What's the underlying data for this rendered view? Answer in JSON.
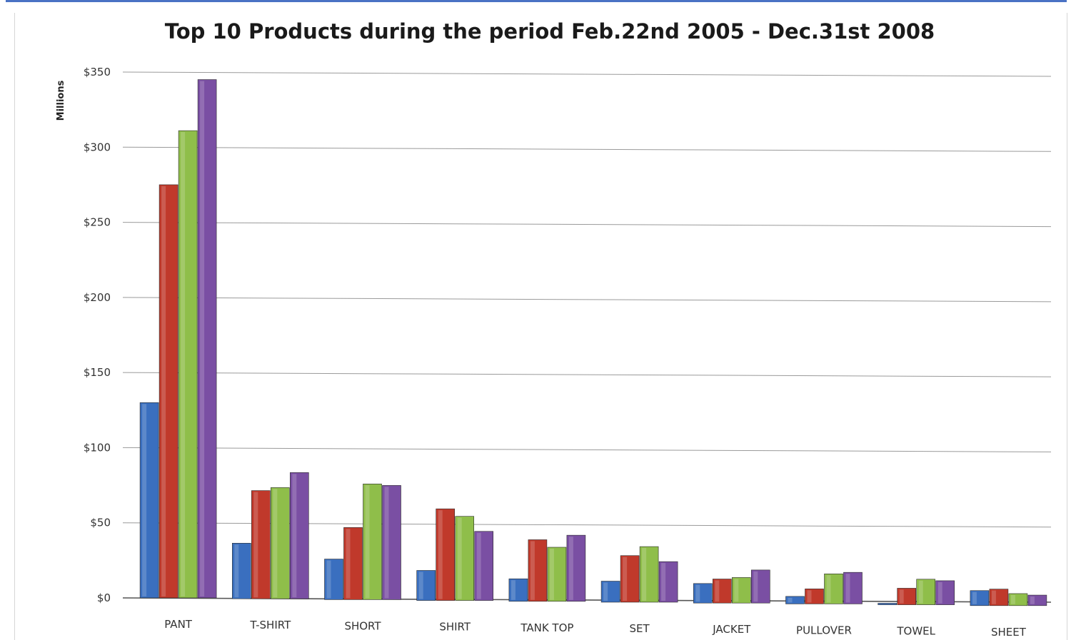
{
  "chart_data": {
    "type": "bar",
    "title": "Top 10 Products during the period Feb.22nd 2005 - Dec.31st 2008",
    "xlabel": "",
    "ylabel": "Millions",
    "ylim": [
      0,
      350
    ],
    "yticks": [
      0,
      50,
      100,
      150,
      200,
      250,
      300,
      350
    ],
    "ytick_labels": [
      "$0",
      "$50",
      "$100",
      "$150",
      "$200",
      "$250",
      "$300",
      "$350"
    ],
    "grid": true,
    "legend": "none",
    "categories": [
      "PANT",
      "T-SHIRT",
      "SHORT",
      "SHIRT",
      "TANK TOP",
      "SET",
      "JACKET",
      "PULLOVER",
      "TOWEL",
      "SHEET"
    ],
    "series": [
      {
        "color": "#3a6fbf",
        "values": [
          130,
          37,
          27,
          20,
          15,
          14,
          13,
          5,
          1,
          10
        ]
      },
      {
        "color": "#c0392b",
        "values": [
          275,
          72,
          48,
          61,
          41,
          31,
          16,
          10,
          11,
          11
        ]
      },
      {
        "color": "#8fbe4a",
        "values": [
          311,
          74,
          77,
          56,
          36,
          37,
          17,
          20,
          17,
          8
        ]
      },
      {
        "color": "#7a4fa3",
        "values": [
          345,
          84,
          76,
          46,
          44,
          27,
          22,
          21,
          16,
          7
        ]
      }
    ]
  }
}
